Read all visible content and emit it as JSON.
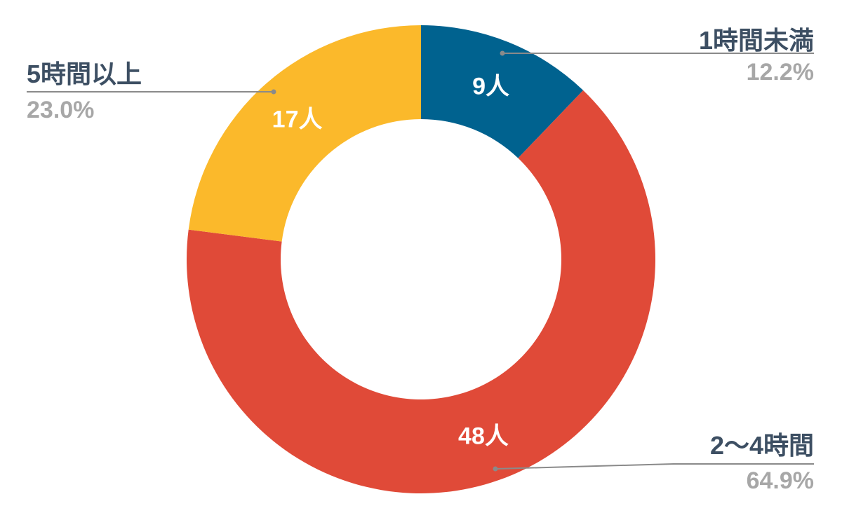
{
  "chart_data": {
    "type": "pie",
    "variant": "donut",
    "slices": [
      {
        "category": "1時間未満",
        "value": 9,
        "value_label": "9人",
        "percent_label": "12.2%",
        "color": "#00628f"
      },
      {
        "category": "2～4時間",
        "value": 48,
        "value_label": "48人",
        "percent_label": "64.9%",
        "color": "#e04a38"
      },
      {
        "category": "5時間以上",
        "value": 17,
        "value_label": "17人",
        "percent_label": "23.0%",
        "color": "#fbb92b"
      }
    ],
    "start_angle": "12 o'clock",
    "direction": "clockwise",
    "legend": "none"
  }
}
